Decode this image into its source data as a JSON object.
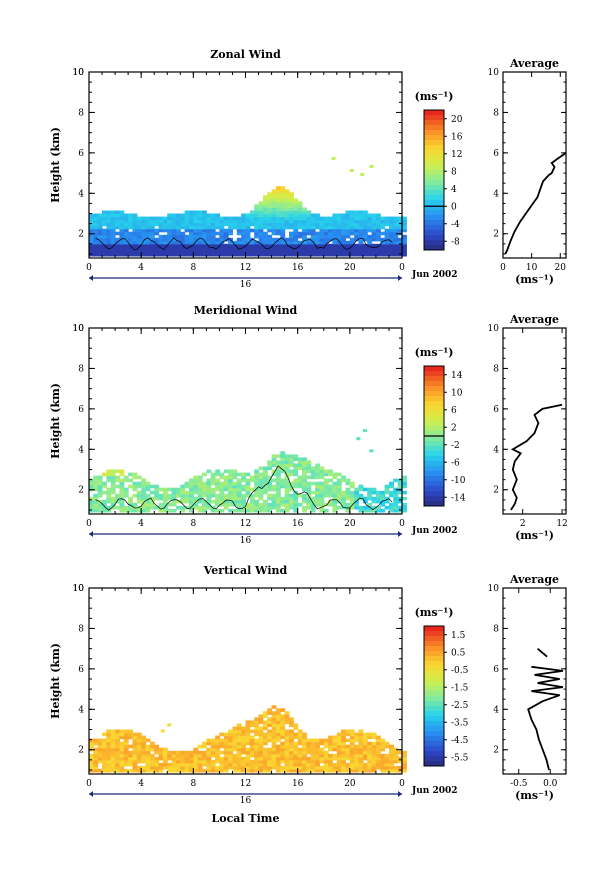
{
  "chart_data": [
    {
      "type": "heatmap",
      "title": "Zonal Wind",
      "ylabel": "Height (km)",
      "xlabel": "",
      "x_ticks": [
        "0",
        "4",
        "8",
        "12",
        "16",
        "20",
        "0"
      ],
      "day_label": "16",
      "month_label": "Jun 2002",
      "y_ticks": [
        "2",
        "4",
        "6",
        "8",
        "10"
      ],
      "ylim": [
        0.8,
        10
      ],
      "xlim": [
        0,
        24
      ],
      "colorbar": {
        "unit": "(ms⁻¹)",
        "ticks": [
          "20",
          "16",
          "12",
          "8",
          "4",
          "0",
          "-4",
          "-8"
        ],
        "range": [
          -10,
          22
        ],
        "zero_line": 0
      },
      "contour": "zero-wind contour (black)",
      "average_profile": {
        "title": "Average",
        "xlabel": "(ms⁻¹)",
        "x_ticks": [
          "0",
          "10",
          "20"
        ],
        "y_ticks": [
          "2",
          "4",
          "6",
          "8",
          "10"
        ],
        "xlim": [
          0,
          22
        ],
        "points": [
          [
            0.8,
            1.0
          ],
          [
            1.5,
            1.2
          ],
          [
            2.5,
            1.6
          ],
          [
            4,
            2.1
          ],
          [
            6,
            2.6
          ],
          [
            8,
            3.0
          ],
          [
            10,
            3.4
          ],
          [
            12,
            3.8
          ],
          [
            13,
            4.2
          ],
          [
            14,
            4.6
          ],
          [
            16,
            4.9
          ],
          [
            17,
            5.0
          ],
          [
            18,
            5.3
          ],
          [
            17,
            5.5
          ],
          [
            19,
            5.7
          ],
          [
            21,
            5.9
          ],
          [
            22,
            6.0
          ]
        ]
      }
    },
    {
      "type": "heatmap",
      "title": "Meridional Wind",
      "ylabel": "Height (km)",
      "xlabel": "",
      "x_ticks": [
        "0",
        "4",
        "8",
        "12",
        "16",
        "20",
        "0"
      ],
      "day_label": "16",
      "month_label": "Jun 2002",
      "y_ticks": [
        "2",
        "4",
        "6",
        "8",
        "10"
      ],
      "ylim": [
        0.8,
        10
      ],
      "xlim": [
        0,
        24
      ],
      "colorbar": {
        "unit": "(ms⁻¹)",
        "ticks": [
          "14",
          "10",
          "6",
          "2",
          "-2",
          "-6",
          "-10",
          "-14"
        ],
        "range": [
          -16,
          16
        ],
        "zero_line": 0
      },
      "contour": "zero-wind contour (black)",
      "average_profile": {
        "title": "Average",
        "xlabel": "(ms⁻¹)",
        "x_ticks": [
          "2",
          "12"
        ],
        "y_ticks": [
          "2",
          "4",
          "6",
          "8",
          "10"
        ],
        "xlim": [
          -3,
          13
        ],
        "points": [
          [
            -1,
            1.0
          ],
          [
            0,
            1.3
          ],
          [
            0.5,
            1.6
          ],
          [
            -0.5,
            2.0
          ],
          [
            0.5,
            2.5
          ],
          [
            -0.5,
            3.0
          ],
          [
            0,
            3.4
          ],
          [
            1.5,
            3.8
          ],
          [
            -0.5,
            4.0
          ],
          [
            3,
            4.4
          ],
          [
            5,
            4.8
          ],
          [
            6,
            5.3
          ],
          [
            5,
            5.7
          ],
          [
            7,
            6.0
          ],
          [
            12,
            6.2
          ]
        ]
      }
    },
    {
      "type": "heatmap",
      "title": "Vertical Wind",
      "ylabel": "Height (km)",
      "xlabel": "Local Time",
      "x_ticks": [
        "0",
        "4",
        "8",
        "12",
        "16",
        "20",
        "0"
      ],
      "day_label": "16",
      "month_label": "Jun 2002",
      "y_ticks": [
        "2",
        "4",
        "6",
        "8",
        "10"
      ],
      "ylim": [
        0.8,
        10
      ],
      "xlim": [
        0,
        24
      ],
      "colorbar": {
        "unit": "(ms⁻¹)",
        "ticks": [
          "1.5",
          "0.5",
          "-0.5",
          "-1.5",
          "-2.5",
          "-3.5",
          "-4.5",
          "-5.5"
        ],
        "range": [
          -6,
          2
        ]
      },
      "average_profile": {
        "title": "Average",
        "xlabel": "(ms⁻¹)",
        "x_ticks": [
          "-0.5",
          "0.0"
        ],
        "y_ticks": [
          "2",
          "4",
          "6",
          "8",
          "10"
        ],
        "xlim": [
          -0.75,
          0.25
        ],
        "points": [
          [
            -0.02,
            1.0
          ],
          [
            -0.06,
            1.5
          ],
          [
            -0.12,
            2.0
          ],
          [
            -0.18,
            2.5
          ],
          [
            -0.22,
            3.0
          ],
          [
            -0.3,
            3.5
          ],
          [
            -0.35,
            4.0
          ],
          [
            -0.12,
            4.4
          ],
          [
            0.15,
            4.7
          ],
          [
            -0.3,
            4.9
          ],
          [
            0.2,
            5.1
          ],
          [
            -0.2,
            5.3
          ],
          [
            0.15,
            5.5
          ],
          [
            -0.25,
            5.7
          ],
          [
            0.2,
            5.9
          ],
          [
            -0.3,
            6.1
          ]
        ],
        "points_upper": [
          [
            -0.2,
            7.0
          ],
          [
            -0.05,
            6.6
          ]
        ]
      }
    }
  ]
}
